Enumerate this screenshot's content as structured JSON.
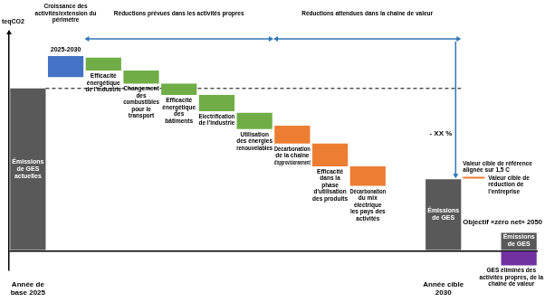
{
  "chart_data": {
    "type": "bar",
    "y_label": "teqCO2",
    "categories": [
      "Année de base 2025",
      null,
      null,
      null,
      null,
      null,
      null,
      null,
      null,
      null,
      null,
      "Année cible 2030",
      null,
      null
    ],
    "series": [
      {
        "values": [
          [
            0,
            100
          ],
          [
            107,
            120
          ],
          [
            111,
            119
          ],
          [
            103,
            111
          ],
          [
            96,
            103
          ],
          [
            86,
            96
          ],
          [
            75,
            85
          ],
          [
            66,
            77
          ],
          [
            52,
            66
          ],
          [
            40,
            52
          ],
          null,
          [
            0,
            44
          ],
          null,
          [
            0,
            11
          ]
        ],
        "colors": [
          "#595959",
          "#4472c4",
          "#70ad47",
          "#70ad47",
          "#70ad47",
          "#70ad47",
          "#70ad47",
          "#ed7d31",
          "#ed7d31",
          "#ed7d31",
          null,
          "#595959",
          null,
          "#595959"
        ],
        "texts": [
          "Émissions de GES actuelles",
          null,
          "Efficacité énergétique de l'industrie",
          "Changement des combustibles pour le transport",
          "Efficacité énergétique des bâtiments",
          "Electrification de l'industrie",
          "Utilisation des énergies renouvelables",
          "Décarbonation de la chaîne d'approvisionnement",
          "Efficacité dans la phase d'utilisation des produits",
          "Décarbonation du mix électrique les pays des activités",
          null,
          "Émissions de GES",
          null,
          "Émissions de GES"
        ]
      },
      {
        "values": [
          null,
          null,
          null,
          null,
          null,
          null,
          null,
          null,
          null,
          null,
          null,
          null,
          null,
          [
            -9,
            0
          ]
        ],
        "color": "#7030a0",
        "texts": [
          null,
          null,
          null,
          null,
          null,
          null,
          null,
          null,
          null,
          null,
          null,
          null,
          null,
          "GES éliminés des activités propres, de la chaîne de valeur"
        ]
      }
    ],
    "annotations": {
      "growth": "Croissance des activités/extension du périmètre",
      "period": "2025-2030",
      "own_reductions": "Réductions prévues dans les activités propres",
      "value_chain_reductions": "Réductions attendues dans la chaîne de valeur",
      "reduction": "- XX %",
      "reference_label": "Valeur cible de référence alignée sur 1,5 C",
      "target_label": "Valeur cible de réduction de l'entreprise",
      "net_zero": "Objectif «zéro net» 2050"
    },
    "reference_value": 45,
    "ylim": [
      -12,
      135
    ],
    "yticks": [
      0
    ],
    "grid": true,
    "tick_labels": "x"
  }
}
